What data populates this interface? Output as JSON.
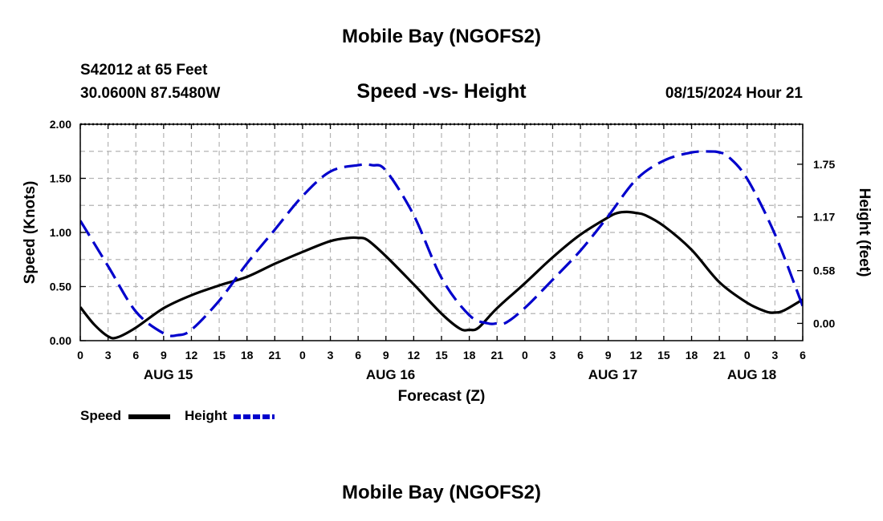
{
  "header": {
    "title_top": "Mobile Bay (NGOFS2)",
    "station_line1": "S42012 at 65 Feet",
    "station_line2": "30.0600N  87.5480W",
    "timestamp": "08/15/2024 Hour 21",
    "title_bottom": "Mobile Bay (NGOFS2)"
  },
  "colors": {
    "speed": "#000000",
    "height": "#0000cc",
    "grid": "#b4b4b4"
  },
  "chart_data": {
    "type": "line",
    "title": "Speed -vs- Height",
    "xlabel": "Forecast (Z)",
    "ylabel": "Speed (Knots)",
    "y2label": "Height (feet)",
    "x_range_hours": [
      0,
      78
    ],
    "x_ticks": [
      "0",
      "3",
      "6",
      "9",
      "12",
      "15",
      "18",
      "21",
      "0",
      "3",
      "6",
      "9",
      "12",
      "15",
      "18",
      "21",
      "0",
      "3",
      "6",
      "9",
      "12",
      "15",
      "18",
      "21",
      "0",
      "3",
      "6"
    ],
    "x_tick_step_hours": 3,
    "date_labels": [
      {
        "label": "AUG 15",
        "hour": 9.5
      },
      {
        "label": "AUG 16",
        "hour": 33.5
      },
      {
        "label": "AUG 17",
        "hour": 57.5
      },
      {
        "label": "AUG 18",
        "hour": 72.5
      }
    ],
    "ylim": [
      0,
      2.0
    ],
    "y_ticks": [
      "0.00",
      "0.50",
      "1.00",
      "1.50",
      "2.00"
    ],
    "y2_ticks": [
      {
        "label": "0.00",
        "value": 0.0
      },
      {
        "label": "0.58",
        "value": 0.58
      },
      {
        "label": "1.17",
        "value": 1.17
      },
      {
        "label": "1.75",
        "value": 1.75
      }
    ],
    "y2_range": [
      -0.19,
      2.19
    ],
    "series": [
      {
        "name": "Speed",
        "axis": "left",
        "style": "solid",
        "x": [
          0,
          1.5,
          3,
          4,
          6,
          9,
          12,
          15,
          18,
          21,
          24,
          27,
          29,
          30,
          31,
          33,
          36,
          39,
          41,
          42,
          43,
          45,
          48,
          51,
          54,
          57,
          58,
          59,
          60,
          61,
          63,
          66,
          69,
          72,
          74,
          75,
          76,
          78
        ],
        "values": [
          0.31,
          0.15,
          0.04,
          0.03,
          0.12,
          0.3,
          0.42,
          0.51,
          0.59,
          0.71,
          0.82,
          0.92,
          0.95,
          0.95,
          0.93,
          0.78,
          0.52,
          0.25,
          0.11,
          0.1,
          0.12,
          0.3,
          0.53,
          0.77,
          0.98,
          1.14,
          1.18,
          1.19,
          1.18,
          1.16,
          1.06,
          0.84,
          0.54,
          0.35,
          0.27,
          0.26,
          0.28,
          0.38
        ]
      },
      {
        "name": "Height",
        "axis": "right",
        "style": "dashed",
        "x": [
          0,
          3,
          6,
          9,
          10.5,
          12,
          15,
          18,
          21,
          24,
          27,
          30,
          31.5,
          33,
          36,
          39,
          42,
          44,
          45,
          46,
          48,
          51,
          54,
          57,
          60,
          63,
          66,
          68,
          69,
          70,
          72,
          75,
          78
        ],
        "values": [
          1.13,
          0.63,
          0.13,
          -0.11,
          -0.13,
          -0.07,
          0.25,
          0.66,
          1.03,
          1.4,
          1.67,
          1.74,
          1.74,
          1.68,
          1.19,
          0.5,
          0.09,
          0.0,
          0.0,
          0.01,
          0.17,
          0.48,
          0.8,
          1.18,
          1.58,
          1.79,
          1.88,
          1.89,
          1.88,
          1.83,
          1.59,
          0.98,
          0.19
        ]
      }
    ]
  },
  "legend": {
    "speed_label": "Speed",
    "height_label": "Height"
  }
}
